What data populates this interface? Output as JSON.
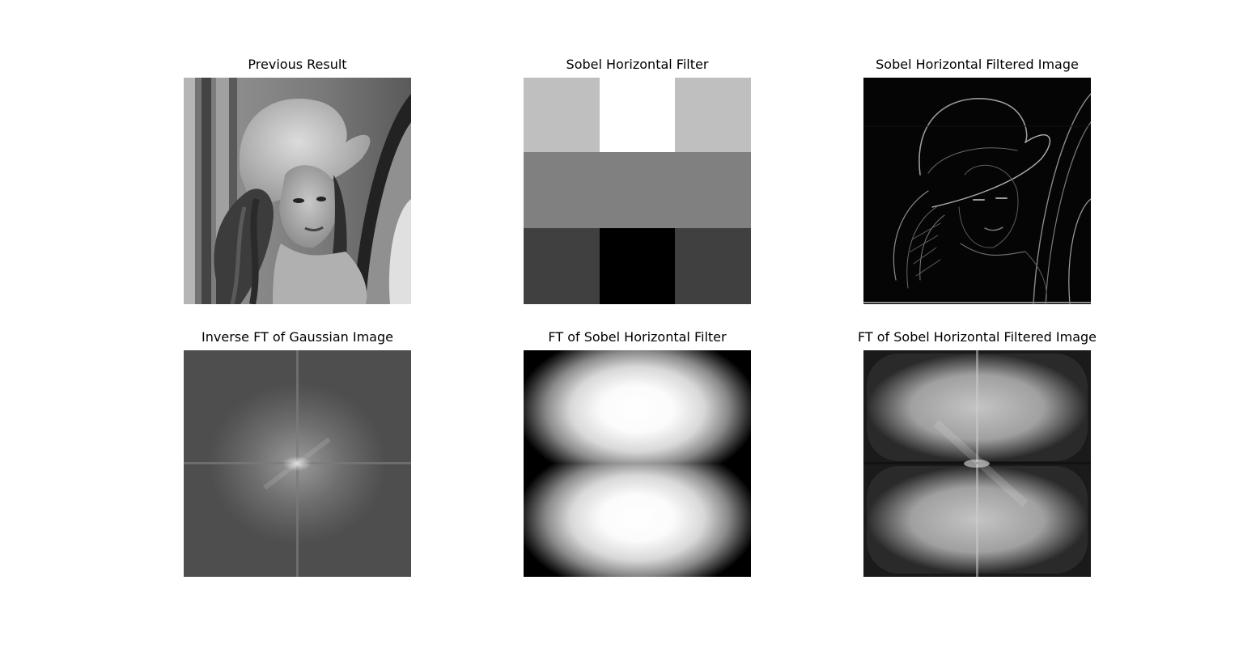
{
  "panels": [
    {
      "title": "Previous Result"
    },
    {
      "title": "Sobel Horizontal Filter"
    },
    {
      "title": "Sobel Horizontal Filtered Image"
    },
    {
      "title": "Inverse FT of Gaussian Image"
    },
    {
      "title": "FT of Sobel Horizontal Filter"
    },
    {
      "title": "FT of Sobel Horizontal Filtered Image"
    }
  ],
  "sobel_kernel": {
    "values": [
      [
        1,
        2,
        1
      ],
      [
        0,
        0,
        0
      ],
      [
        -1,
        -2,
        -1
      ]
    ],
    "colors": [
      [
        "#bfbfbf",
        "#ffffff",
        "#bfbfbf"
      ],
      [
        "#808080",
        "#808080",
        "#808080"
      ],
      [
        "#404040",
        "#000000",
        "#404040"
      ]
    ]
  },
  "colormap": "gray"
}
